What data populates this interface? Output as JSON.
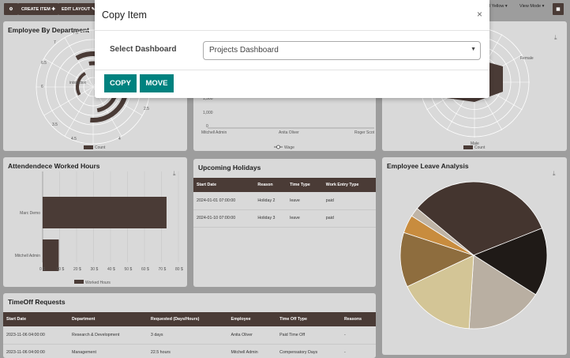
{
  "toolbar": {
    "settings_icon": "gear-icon",
    "create_item": "CREATE ITEM",
    "edit_layout": "EDIT LAYOUT",
    "theme_partial": "l Yellow",
    "view_mode": "View Mode"
  },
  "cards": {
    "employee_by_department": {
      "title": "Employee By Department",
      "partial_label": "inistration",
      "legend": "Count"
    },
    "middle_chart": {
      "y_ticks": [
        "1,500",
        "1,000",
        "500",
        "0"
      ],
      "x_labels": [
        "Mitchell Admin",
        "Anita Oliver",
        "Roger Scot"
      ],
      "legend": "Wage"
    },
    "gender_chart": {
      "labels": [
        "Female",
        "Male"
      ],
      "legend": "Count"
    },
    "attendance": {
      "title": "Attendendece Worked Hours",
      "legend": "Worked Hours"
    },
    "holidays": {
      "title": "Upcoming Holidays",
      "headers": [
        "Start Date",
        "Reason",
        "Time Type",
        "Work Entry Type"
      ],
      "rows": [
        [
          "2024-01-01 07:00:00",
          "Holiday 2",
          "leave",
          "paid"
        ],
        [
          "2024-01-10 07:00:00",
          "Holiday 3",
          "leave",
          "paid"
        ]
      ]
    },
    "leave_analysis": {
      "title": "Employee Leave Analysis"
    },
    "timeoff": {
      "title": "TimeOff Requests",
      "headers": [
        "Start Date",
        "Department",
        "Requested (Days/Hours)",
        "Employee",
        "Time Off Type",
        "Reasons"
      ],
      "rows": [
        [
          "2023-11-06 04:00:00",
          "Research & Development",
          "3 days",
          "Anita Oliver",
          "Paid Time Off",
          "-"
        ],
        [
          "2023-11-06 04:00:00",
          "Management",
          "22.5 hours",
          "Mitchell Admin",
          "Compensatory Days",
          "-"
        ]
      ]
    }
  },
  "chart_data": [
    {
      "type": "radar",
      "title": "Employee By Department",
      "r_ticks": [
        "1",
        "1.5",
        "2",
        "2.5",
        "3",
        "3.5",
        "4",
        "4.5",
        "5",
        "5.5",
        "6",
        "6.5",
        "7",
        "7.5"
      ],
      "series": [
        {
          "name": "Count"
        }
      ]
    },
    {
      "type": "bar",
      "title": "Attendendece Worked Hours",
      "orientation": "horizontal",
      "categories": [
        "Marc Demo",
        "Mitchell Admin"
      ],
      "values": [
        73,
        9.5
      ],
      "x_ticks": [
        "0 $",
        "10 $",
        "20 $",
        "30 $",
        "40 $",
        "50 $",
        "60 $",
        "70 $",
        "80 $"
      ],
      "xlim": [
        0,
        80
      ],
      "series": [
        {
          "name": "Worked Hours"
        }
      ]
    },
    {
      "type": "pie",
      "title": "Employee Leave Analysis",
      "values": [
        33,
        15,
        17,
        17,
        12,
        4,
        2
      ],
      "colors": [
        "#44352f",
        "#1f1a17",
        "#b9afa2",
        "#d3c596",
        "#8e6d3e",
        "#c88c3e",
        "#bfb4a6"
      ]
    }
  ],
  "modal": {
    "title": "Copy Item",
    "close": "×",
    "select_label": "Select Dashboard",
    "select_value": "Projects Dashboard",
    "copy": "COPY",
    "move": "MOVE"
  }
}
